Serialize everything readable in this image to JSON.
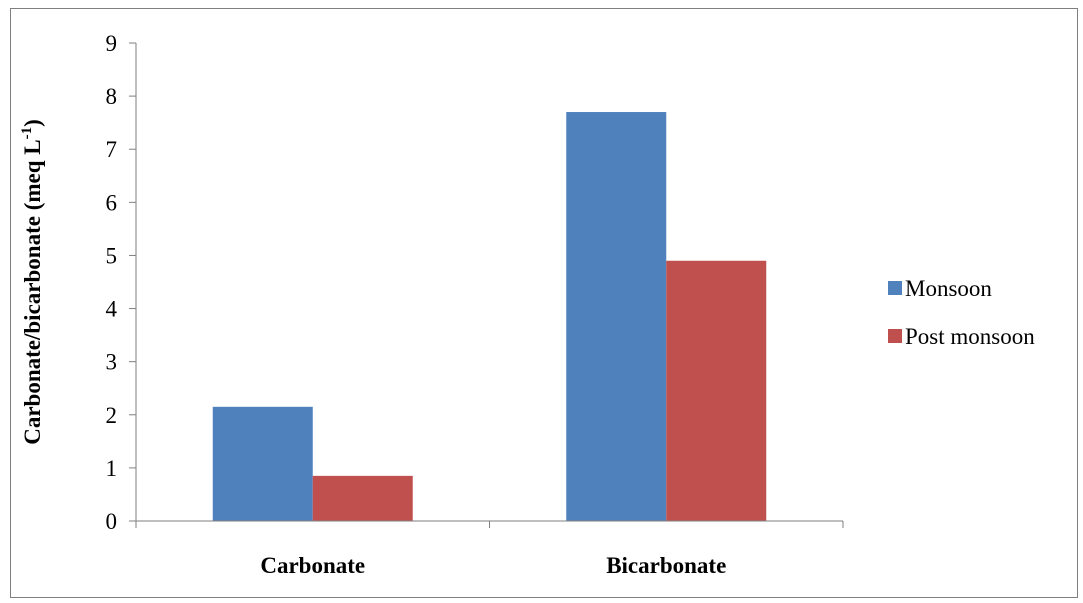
{
  "chart_data": {
    "type": "bar",
    "categories": [
      "Carbonate",
      "Bicarbonate"
    ],
    "series": [
      {
        "name": "Monsoon",
        "values": [
          2.15,
          7.7
        ],
        "color": "#4f81bd"
      },
      {
        "name": "Post monsoon",
        "values": [
          0.85,
          4.9
        ],
        "color": "#c0504d"
      }
    ],
    "title": "",
    "xlabel": "",
    "ylabel": {
      "main": "Carbonate/bicarbonate (meq L",
      "superscript": "-1",
      "suffix": ")"
    },
    "ylim": [
      0,
      9
    ],
    "yticks": [
      "0",
      "1",
      "2",
      "3",
      "4",
      "5",
      "6",
      "7",
      "8",
      "9"
    ],
    "grid": false,
    "legend_position": "right"
  }
}
